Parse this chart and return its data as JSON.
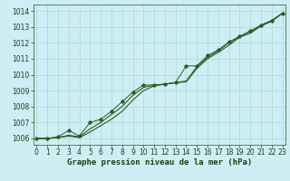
{
  "x": [
    0,
    1,
    2,
    3,
    4,
    5,
    6,
    7,
    8,
    9,
    10,
    11,
    12,
    13,
    14,
    15,
    16,
    17,
    18,
    19,
    20,
    21,
    22,
    23
  ],
  "line_smooth1": [
    1006.0,
    1006.0,
    1006.05,
    1006.2,
    1006.1,
    1006.6,
    1007.0,
    1007.5,
    1008.0,
    1008.7,
    1009.2,
    1009.35,
    1009.4,
    1009.5,
    1009.6,
    1010.5,
    1011.1,
    1011.5,
    1012.0,
    1012.4,
    1012.7,
    1013.1,
    1013.4,
    1013.85
  ],
  "line_smooth2": [
    1006.0,
    1006.0,
    1006.05,
    1006.15,
    1006.05,
    1006.4,
    1006.8,
    1007.2,
    1007.7,
    1008.4,
    1009.0,
    1009.3,
    1009.4,
    1009.5,
    1009.55,
    1010.4,
    1011.0,
    1011.4,
    1011.85,
    1012.35,
    1012.6,
    1013.05,
    1013.35,
    1013.85
  ],
  "markers": [
    1006.0,
    1006.0,
    1006.1,
    1006.5,
    1006.15,
    1007.0,
    1007.2,
    1007.7,
    1008.3,
    1008.9,
    1009.35,
    1009.35,
    1009.4,
    1009.5,
    1010.55,
    1010.55,
    1011.2,
    1011.55,
    1012.05,
    1012.4,
    1012.75,
    1013.1,
    1013.4,
    1013.85
  ],
  "ylim": [
    1005.6,
    1014.4
  ],
  "yticks": [
    1006,
    1007,
    1008,
    1009,
    1010,
    1011,
    1012,
    1013,
    1014
  ],
  "xticks": [
    0,
    1,
    2,
    3,
    4,
    5,
    6,
    7,
    8,
    9,
    10,
    11,
    12,
    13,
    14,
    15,
    16,
    17,
    18,
    19,
    20,
    21,
    22,
    23
  ],
  "xlabel": "Graphe pression niveau de la mer (hPa)",
  "bg_color": "#cdeef5",
  "line_color": "#2d5a1e",
  "grid_color": "#b0d8cc",
  "text_color": "#1a4010",
  "xlabel_fontsize": 6.5,
  "tick_fontsize": 5.5
}
